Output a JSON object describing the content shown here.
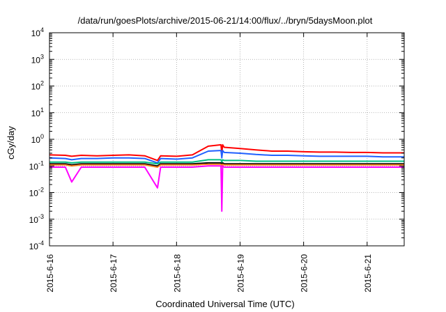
{
  "chart_data": {
    "type": "line",
    "title": "/data/run/goesPlots/archive/2015-06-21/14:00/flux/../bryn/5daysMoon.plot",
    "xlabel": "Coordinated Universal Time (UTC)",
    "ylabel": "cGy/day",
    "yscale": "log",
    "ylim": [
      0.0001,
      10000
    ],
    "xlim": [
      "2015-06-16T00:00",
      "2015-06-21T14:00"
    ],
    "grid": true,
    "legend": "none",
    "x_ticks": [
      "2015-6-16",
      "2015-6-17",
      "2015-6-18",
      "2015-6-19",
      "2015-6-20",
      "2015-6-21"
    ],
    "y_ticks": [
      {
        "base": "10",
        "exp": "4"
      },
      {
        "base": "10",
        "exp": "3"
      },
      {
        "base": "10",
        "exp": "2"
      },
      {
        "base": "10",
        "exp": "1"
      },
      {
        "base": "10",
        "exp": "0"
      },
      {
        "base": "10",
        "exp": "-1"
      },
      {
        "base": "10",
        "exp": "-2"
      },
      {
        "base": "10",
        "exp": "-3"
      },
      {
        "base": "10",
        "exp": "-4"
      }
    ],
    "x_times": [
      "2015-06-16T00:00",
      "2015-06-16T06:00",
      "2015-06-16T08:24",
      "2015-06-16T12:00",
      "2015-06-16T18:00",
      "2015-06-17T00:00",
      "2015-06-17T06:00",
      "2015-06-17T12:00",
      "2015-06-17T16:48",
      "2015-06-17T18:00",
      "2015-06-18T00:00",
      "2015-06-18T06:00",
      "2015-06-18T12:00",
      "2015-06-18T16:48",
      "2015-06-18T18:00",
      "2015-06-19T00:00",
      "2015-06-19T06:00",
      "2015-06-19T12:00",
      "2015-06-19T18:00",
      "2015-06-20T00:00",
      "2015-06-20T06:00",
      "2015-06-20T12:00",
      "2015-06-20T18:00",
      "2015-06-21T00:00",
      "2015-06-21T06:00",
      "2015-06-21T14:00"
    ],
    "series": [
      {
        "color": "#ff0000",
        "values": [
          0.26,
          0.25,
          0.23,
          0.25,
          0.24,
          0.25,
          0.26,
          0.24,
          0.16,
          0.24,
          0.23,
          0.26,
          0.55,
          0.62,
          0.5,
          0.45,
          0.4,
          0.36,
          0.36,
          0.34,
          0.33,
          0.33,
          0.32,
          0.32,
          0.31,
          0.31
        ]
      },
      {
        "color": "#2060ff",
        "values": [
          0.2,
          0.19,
          0.17,
          0.19,
          0.19,
          0.2,
          0.2,
          0.19,
          0.13,
          0.19,
          0.18,
          0.2,
          0.36,
          0.38,
          0.32,
          0.3,
          0.27,
          0.25,
          0.25,
          0.24,
          0.23,
          0.23,
          0.23,
          0.23,
          0.22,
          0.22
        ]
      },
      {
        "color": "#00c080",
        "values": [
          0.14,
          0.14,
          0.13,
          0.14,
          0.14,
          0.14,
          0.14,
          0.14,
          0.12,
          0.14,
          0.14,
          0.14,
          0.17,
          0.17,
          0.16,
          0.16,
          0.15,
          0.15,
          0.15,
          0.15,
          0.15,
          0.15,
          0.15,
          0.15,
          0.15,
          0.15
        ]
      },
      {
        "color": "#000000",
        "values": [
          0.12,
          0.12,
          0.11,
          0.12,
          0.12,
          0.12,
          0.12,
          0.12,
          0.1,
          0.12,
          0.12,
          0.12,
          0.13,
          0.13,
          0.12,
          0.12,
          0.12,
          0.12,
          0.12,
          0.12,
          0.12,
          0.12,
          0.12,
          0.12,
          0.12,
          0.12
        ]
      },
      {
        "color": "#ff8020",
        "values": [
          0.11,
          0.11,
          0.1,
          0.11,
          0.11,
          0.11,
          0.11,
          0.11,
          0.09,
          0.11,
          0.11,
          0.11,
          0.115,
          0.115,
          0.11,
          0.11,
          0.11,
          0.11,
          0.11,
          0.11,
          0.11,
          0.11,
          0.11,
          0.11,
          0.11,
          0.11
        ]
      },
      {
        "color": "#ff00ff",
        "values": [
          0.09,
          0.09,
          0.025,
          0.09,
          0.09,
          0.09,
          0.09,
          0.09,
          0.015,
          0.09,
          0.09,
          0.09,
          0.1,
          0.1,
          0.09,
          0.09,
          0.09,
          0.09,
          0.09,
          0.09,
          0.09,
          0.09,
          0.09,
          0.09,
          0.09,
          0.09
        ]
      }
    ],
    "events": [
      {
        "time": "2015-06-18T16:48",
        "values": [
          0.3,
          0.2,
          0.14,
          0.1,
          0.1,
          0.002
        ]
      }
    ]
  }
}
